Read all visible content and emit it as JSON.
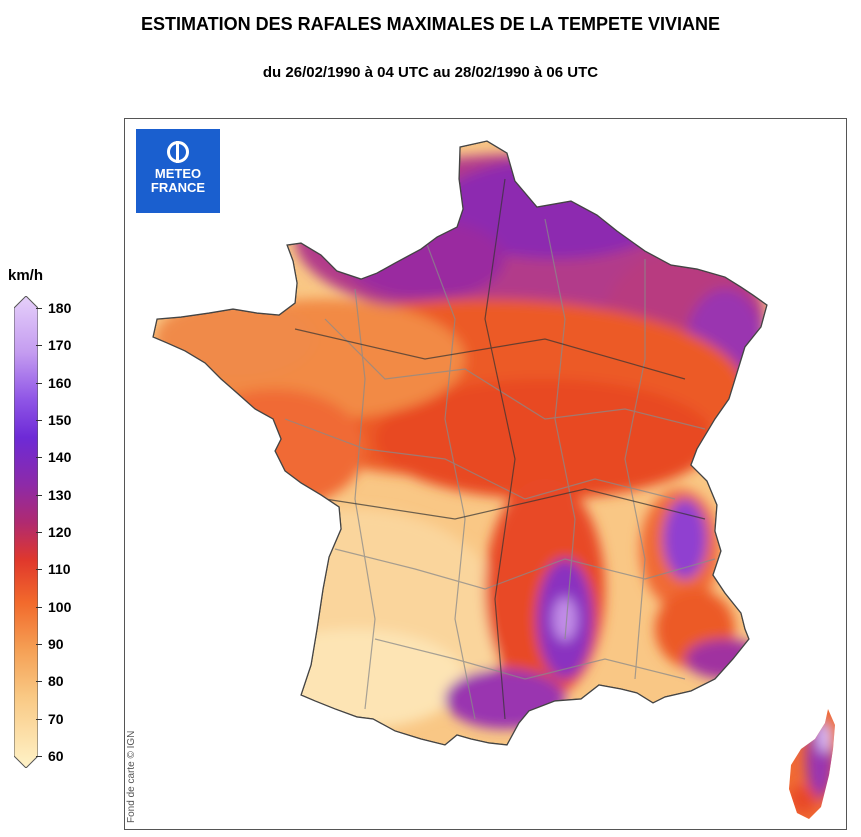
{
  "header": {
    "title": "ESTIMATION DES RAFALES MAXIMALES DE LA TEMPETE VIVIANE",
    "subtitle": "du 26/02/1990 à 04 UTC au 28/02/1990 à 06 UTC"
  },
  "logo": {
    "line1": "METEO",
    "line2": "FRANCE",
    "color": "#1a5fcf"
  },
  "credit": "Fond de carte © IGN",
  "legend": {
    "unit": "km/h",
    "ticks": [
      "180",
      "170",
      "160",
      "150",
      "140",
      "130",
      "120",
      "110",
      "100",
      "90",
      "80",
      "70",
      "60"
    ],
    "colors": [
      "#d8b8f5",
      "#c89df0",
      "#b07ee8",
      "#9050e0",
      "#7a2fd0",
      "#8b2db0",
      "#a02a90",
      "#c8304a",
      "#e84a28",
      "#f07a3c",
      "#f6aa62",
      "#fad08c",
      "#fde8b8"
    ]
  },
  "chart_data": {
    "type": "heatmap",
    "title": "ESTIMATION DES RAFALES MAXIMALES DE LA TEMPETE VIVIANE",
    "subtitle": "du 26/02/1990 à 04 UTC au 28/02/1990 à 06 UTC",
    "colorbar_range": [
      60,
      180
    ],
    "colorbar_unit": "km/h"
  }
}
